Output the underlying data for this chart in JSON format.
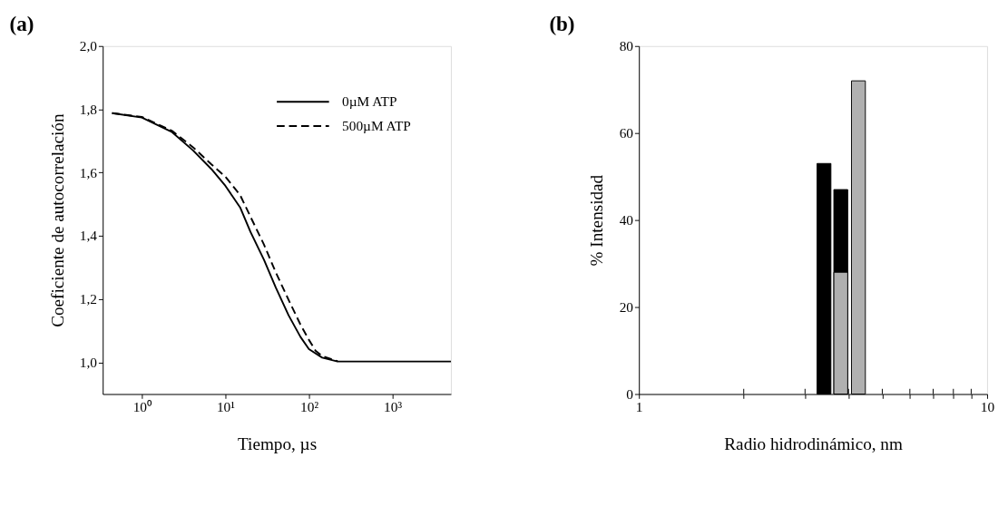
{
  "chart_data": [
    {
      "type": "line",
      "title": "(a)",
      "xlabel": "Tiempo, µs",
      "ylabel": "Coeficiente de autocorrelación",
      "log": "x",
      "legend": "top right",
      "grid": false,
      "xlim": [
        0.34,
        5000
      ],
      "xticks": [
        {
          "value": 1,
          "label": "10⁰"
        },
        {
          "value": 10,
          "label": "10¹"
        },
        {
          "value": 100,
          "label": "10²"
        },
        {
          "value": 1000,
          "label": "10³"
        }
      ],
      "ylim": [
        0.9,
        2.0
      ],
      "yticks": [
        {
          "value": 1.0,
          "label": "1,0"
        },
        {
          "value": 1.2,
          "label": "1,2"
        },
        {
          "value": 1.4,
          "label": "1,4"
        },
        {
          "value": 1.6,
          "label": "1,6"
        },
        {
          "value": 1.8,
          "label": "1,8"
        },
        {
          "value": 2.0,
          "label": "2,0"
        }
      ],
      "series": [
        {
          "name": "0µM ATP",
          "color": "#000000",
          "line_style": "solid",
          "x": [
            0.44,
            1,
            2.3,
            4.1,
            6.8,
            10,
            15,
            20,
            29,
            40,
            57,
            79,
            100,
            144,
            220,
            1000,
            5000
          ],
          "values": [
            1.788,
            1.774,
            1.728,
            1.67,
            1.611,
            1.558,
            1.49,
            1.412,
            1.324,
            1.237,
            1.149,
            1.081,
            1.042,
            1.015,
            1.003,
            1.003,
            1.003
          ]
        },
        {
          "name": "500µM ATP",
          "color": "#000000",
          "line_style": "dashed",
          "x": [
            0.44,
            1,
            2.3,
            4.1,
            6.8,
            10,
            15,
            20,
            29,
            40,
            57,
            79,
            100,
            120,
            144,
            220
          ],
          "values": [
            1.788,
            1.776,
            1.732,
            1.68,
            1.626,
            1.587,
            1.529,
            1.46,
            1.372,
            1.285,
            1.198,
            1.12,
            1.071,
            1.037,
            1.02,
            1.004
          ]
        }
      ]
    },
    {
      "type": "bar",
      "title": "(b)",
      "xlabel": "Radio hidrodinámico, nm",
      "ylabel": "% Intensidad",
      "log": "x",
      "grid": false,
      "xlim": [
        1,
        10
      ],
      "xticks": [
        1,
        {
          "value": 2,
          "label": null
        },
        {
          "value": 3,
          "label": null
        },
        {
          "value": 4,
          "label": null
        },
        {
          "value": 5,
          "label": null
        },
        {
          "value": 6,
          "label": null
        },
        {
          "value": 7,
          "label": null
        },
        {
          "value": 8,
          "label": null
        },
        {
          "value": 9,
          "label": null
        },
        10
      ],
      "ylim": [
        0,
        80
      ],
      "yticks": [
        0,
        20,
        40,
        60,
        80
      ],
      "series": [
        {
          "color": "#000000",
          "x": [
            3.4,
            3.8
          ],
          "values": [
            53,
            47
          ]
        },
        {
          "color": "#b0b0b0",
          "x": [
            3.8,
            4.27
          ],
          "values": [
            28,
            72
          ]
        }
      ]
    }
  ]
}
